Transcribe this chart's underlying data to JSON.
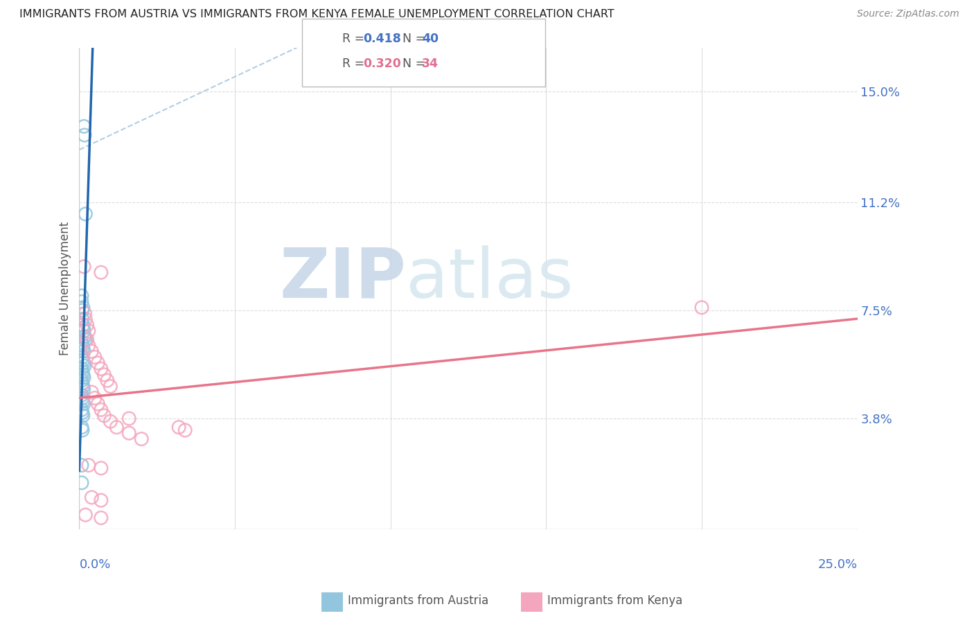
{
  "title": "IMMIGRANTS FROM AUSTRIA VS IMMIGRANTS FROM KENYA FEMALE UNEMPLOYMENT CORRELATION CHART",
  "source": "Source: ZipAtlas.com",
  "ylabel": "Female Unemployment",
  "yticks_pct": [
    3.8,
    7.5,
    11.2,
    15.0
  ],
  "ytick_labels": [
    "3.8%",
    "7.5%",
    "11.2%",
    "15.0%"
  ],
  "xlim_pct": [
    0.0,
    25.0
  ],
  "ylim_pct": [
    0.0,
    16.5
  ],
  "austria_R": 0.418,
  "austria_N": 40,
  "kenya_R": 0.32,
  "kenya_N": 34,
  "austria_color": "#92c5de",
  "kenya_color": "#f4a6be",
  "austria_line_color": "#2166ac",
  "kenya_line_color": "#d6604d",
  "kenya_line_color2": "#e8748a",
  "background_color": "#ffffff",
  "grid_color": "#dddddd",
  "watermark_zip": "ZIP",
  "watermark_atlas": "atlas",
  "watermark_color": "#c8d8e8",
  "austria_scatter_pct": [
    [
      0.15,
      13.8
    ],
    [
      0.17,
      13.5
    ],
    [
      0.2,
      10.8
    ],
    [
      0.08,
      8.0
    ],
    [
      0.08,
      7.8
    ],
    [
      0.12,
      7.6
    ],
    [
      0.1,
      7.5
    ],
    [
      0.1,
      7.2
    ],
    [
      0.12,
      7.0
    ],
    [
      0.13,
      6.9
    ],
    [
      0.15,
      6.8
    ],
    [
      0.18,
      6.6
    ],
    [
      0.2,
      6.5
    ],
    [
      0.08,
      6.4
    ],
    [
      0.1,
      6.3
    ],
    [
      0.12,
      6.2
    ],
    [
      0.15,
      6.1
    ],
    [
      0.1,
      5.9
    ],
    [
      0.12,
      5.8
    ],
    [
      0.14,
      5.7
    ],
    [
      0.17,
      5.6
    ],
    [
      0.08,
      5.5
    ],
    [
      0.1,
      5.4
    ],
    [
      0.12,
      5.3
    ],
    [
      0.15,
      5.2
    ],
    [
      0.08,
      5.1
    ],
    [
      0.1,
      5.0
    ],
    [
      0.12,
      4.9
    ],
    [
      0.14,
      4.8
    ],
    [
      0.08,
      4.6
    ],
    [
      0.1,
      4.5
    ],
    [
      0.12,
      4.4
    ],
    [
      0.14,
      4.3
    ],
    [
      0.08,
      4.1
    ],
    [
      0.1,
      4.0
    ],
    [
      0.12,
      3.9
    ],
    [
      0.08,
      3.5
    ],
    [
      0.1,
      3.4
    ],
    [
      0.08,
      2.2
    ],
    [
      0.08,
      1.6
    ]
  ],
  "kenya_scatter_pct": [
    [
      0.15,
      9.0
    ],
    [
      20.0,
      7.6
    ],
    [
      0.18,
      7.4
    ],
    [
      0.2,
      7.2
    ],
    [
      0.25,
      7.0
    ],
    [
      0.3,
      6.8
    ],
    [
      0.25,
      6.5
    ],
    [
      0.3,
      6.3
    ],
    [
      0.4,
      6.1
    ],
    [
      0.5,
      5.9
    ],
    [
      0.6,
      5.7
    ],
    [
      0.7,
      5.5
    ],
    [
      0.8,
      5.3
    ],
    [
      0.9,
      5.1
    ],
    [
      1.0,
      4.9
    ],
    [
      0.4,
      4.7
    ],
    [
      0.5,
      4.5
    ],
    [
      0.6,
      4.3
    ],
    [
      0.7,
      4.1
    ],
    [
      0.8,
      3.9
    ],
    [
      1.0,
      3.7
    ],
    [
      1.2,
      3.5
    ],
    [
      1.6,
      3.3
    ],
    [
      2.0,
      3.1
    ],
    [
      0.7,
      8.8
    ],
    [
      3.2,
      3.5
    ],
    [
      3.4,
      3.4
    ],
    [
      0.3,
      2.2
    ],
    [
      0.7,
      2.1
    ],
    [
      0.4,
      1.1
    ],
    [
      0.7,
      1.0
    ],
    [
      0.2,
      0.5
    ],
    [
      0.7,
      0.4
    ],
    [
      1.6,
      3.8
    ]
  ]
}
